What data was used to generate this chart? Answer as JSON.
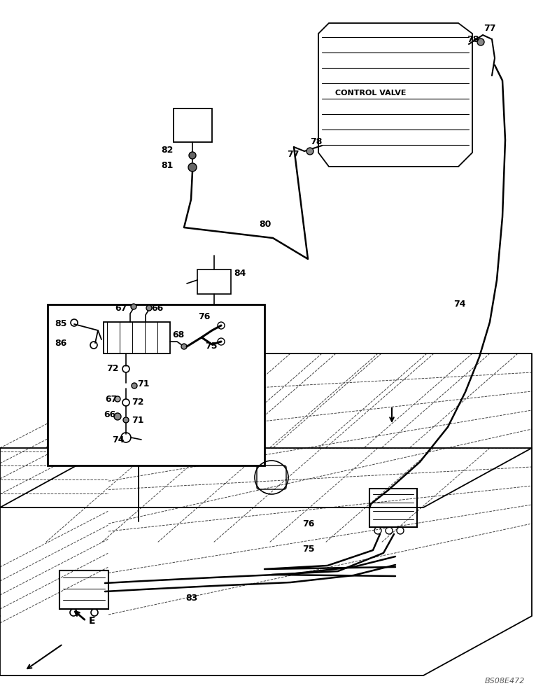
{
  "background_color": "#ffffff",
  "line_color": "#000000",
  "control_valve_text": "CONTROL VALVE",
  "watermark": "BS08E472"
}
